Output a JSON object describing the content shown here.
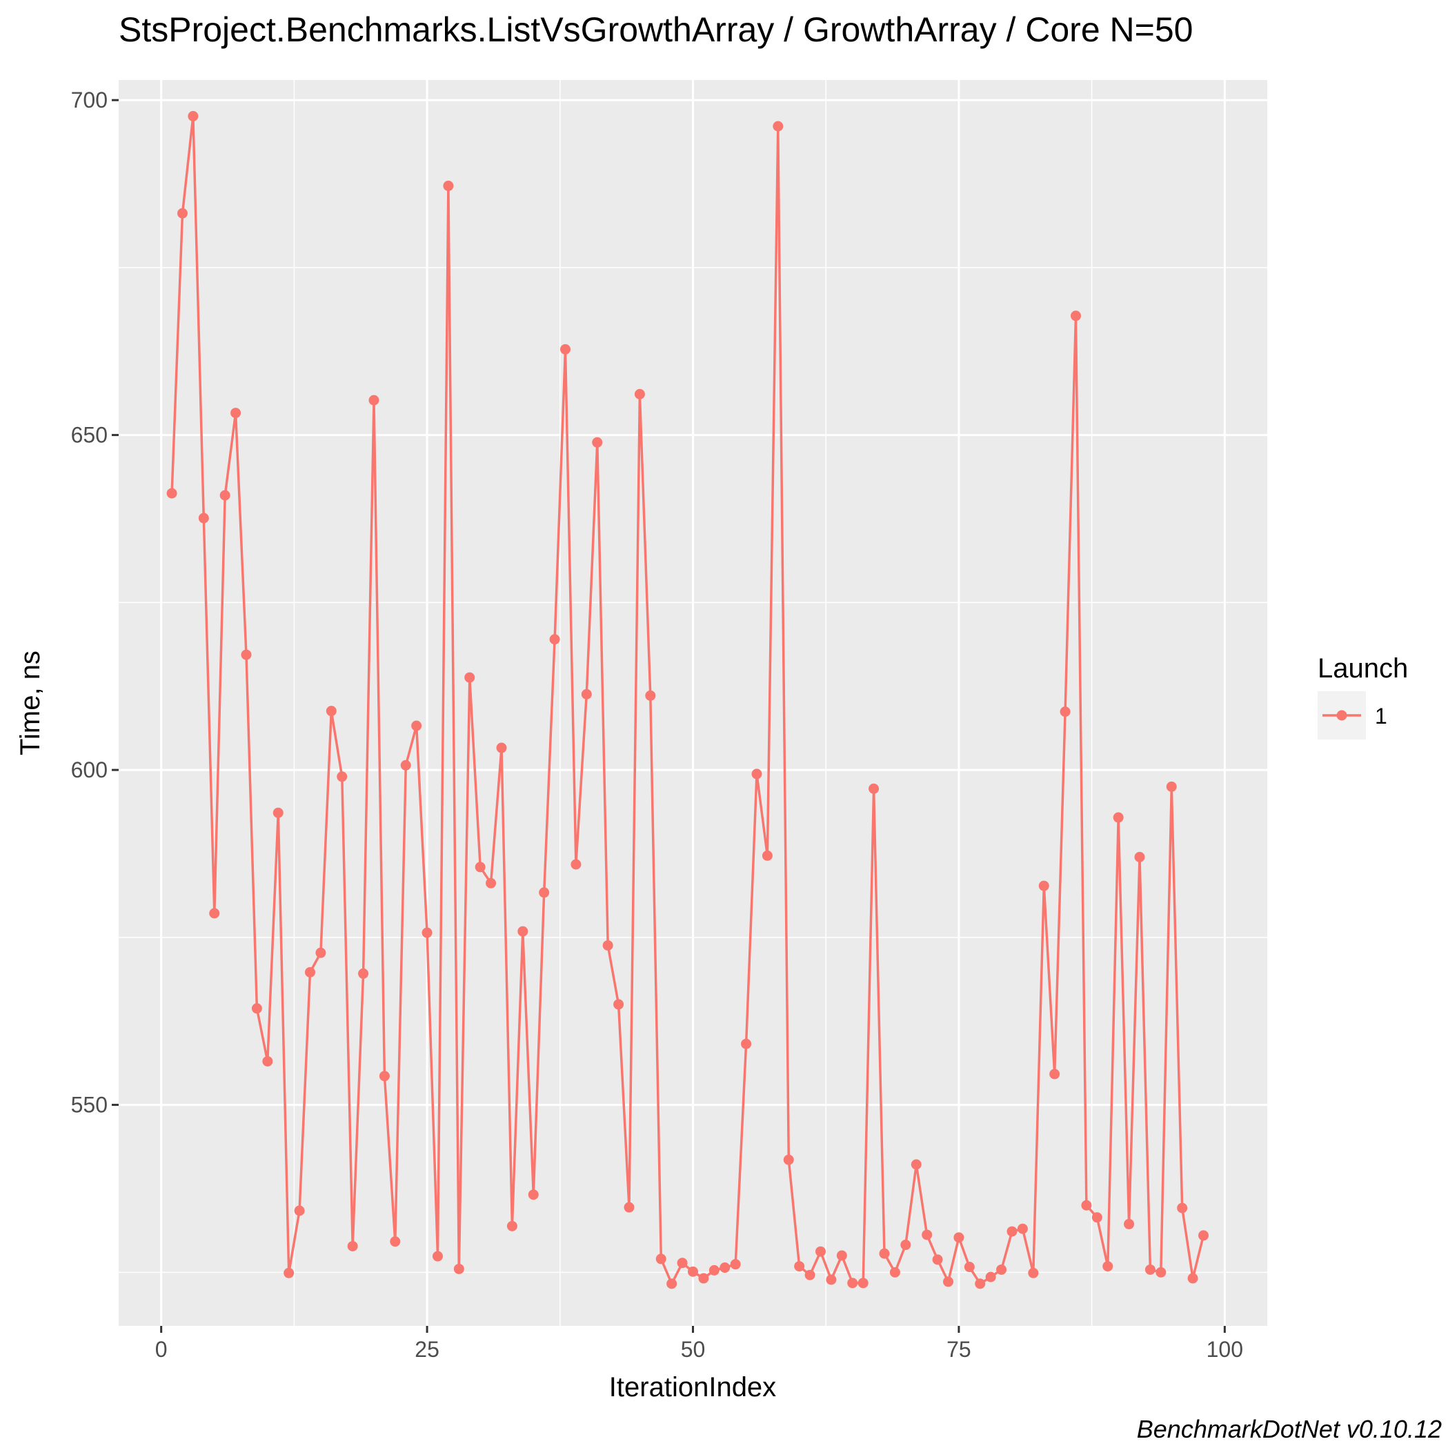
{
  "chart_data": {
    "type": "line",
    "title": "StsProject.Benchmarks.ListVsGrowthArray / GrowthArray / Core N=50",
    "xlabel": "IterationIndex",
    "ylabel": "Time, ns",
    "xlim": [
      -4,
      104
    ],
    "ylim": [
      517,
      703
    ],
    "x_ticks": [
      0,
      25,
      50,
      75,
      100
    ],
    "x_tick_labels": [
      "0",
      "25",
      "50",
      "75",
      "100"
    ],
    "y_ticks": [
      550,
      600,
      650,
      700
    ],
    "y_tick_labels": [
      "550",
      "600",
      "650",
      "700"
    ],
    "grid": true,
    "legend": {
      "title": "Launch",
      "position": "right",
      "entries": [
        "1"
      ]
    },
    "caption": "BenchmarkDotNet v0.10.12",
    "colors": {
      "series": "#F8766D",
      "panel": "#EBEBEB",
      "grid": "#FFFFFF"
    },
    "series": [
      {
        "name": "1",
        "x": [
          1,
          2,
          3,
          4,
          5,
          6,
          7,
          8,
          9,
          10,
          11,
          12,
          13,
          14,
          15,
          16,
          17,
          18,
          19,
          20,
          21,
          22,
          23,
          24,
          25,
          26,
          27,
          28,
          29,
          30,
          31,
          32,
          33,
          34,
          35,
          36,
          37,
          38,
          39,
          40,
          41,
          42,
          43,
          44,
          45,
          46,
          47,
          48,
          49,
          50,
          51,
          52,
          53,
          54,
          55,
          56,
          57,
          58,
          59,
          60,
          61,
          62,
          63,
          64,
          65,
          66,
          67,
          68,
          69,
          70,
          71,
          72,
          73,
          74,
          75,
          76,
          77,
          78,
          79,
          80,
          81,
          82,
          83,
          84,
          85,
          86,
          87,
          88,
          89,
          90,
          91,
          92,
          93,
          94,
          95,
          96,
          97,
          98
        ],
        "y": [
          641.3,
          683.1,
          697.6,
          637.6,
          578.6,
          641.0,
          653.3,
          617.2,
          564.4,
          556.5,
          593.6,
          524.9,
          534.2,
          569.8,
          572.7,
          608.8,
          599.0,
          528.9,
          569.6,
          655.2,
          554.3,
          529.6,
          600.7,
          606.6,
          575.7,
          527.4,
          687.2,
          525.5,
          613.8,
          585.5,
          583.1,
          603.3,
          531.9,
          575.9,
          536.6,
          581.7,
          619.5,
          662.8,
          585.9,
          611.3,
          648.9,
          573.8,
          565.0,
          534.7,
          656.1,
          611.1,
          527.0,
          523.3,
          526.4,
          525.1,
          524.1,
          525.3,
          525.7,
          526.2,
          559.1,
          599.4,
          587.2,
          696.1,
          541.8,
          525.9,
          524.6,
          528.1,
          523.9,
          527.5,
          523.4,
          523.4,
          597.2,
          527.8,
          525.0,
          529.1,
          541.1,
          530.6,
          526.9,
          523.6,
          530.2,
          525.8,
          523.3,
          524.3,
          525.4,
          531.1,
          531.5,
          524.9,
          582.7,
          554.6,
          608.7,
          667.8,
          535.0,
          533.2,
          525.9,
          592.9,
          532.2,
          587.0,
          525.4,
          525.0,
          597.5,
          534.6,
          524.1,
          530.5
        ]
      }
    ]
  }
}
